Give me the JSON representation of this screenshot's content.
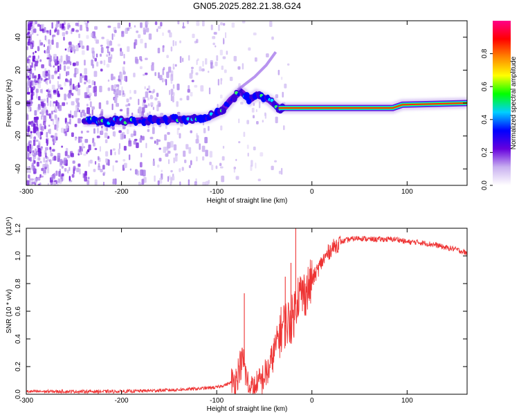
{
  "figure": {
    "title": "GN05.2025.282.21.38.G24"
  },
  "chart_data": [
    {
      "type": "heatmap",
      "xlabel": "Height of straight line (km)",
      "ylabel": "Frequency (Hz)",
      "xlim": [
        -300,
        163
      ],
      "ylim": [
        -50,
        50
      ],
      "xticks": [
        -300,
        -200,
        -100,
        0,
        100
      ],
      "yticks": [
        -40,
        -20,
        0,
        20,
        40
      ],
      "colorbar": {
        "label": "Normalized spectral amplitude",
        "range": [
          0,
          1
        ],
        "ticks": [
          0.0,
          0.2,
          0.4,
          0.6,
          0.8
        ],
        "tick_labels": [
          "0.0",
          "0.2",
          "0.4",
          "0.6",
          "0.8"
        ],
        "colormap": [
          "#ffffff",
          "#c9b0f0",
          "#6600dd",
          "#0000ff",
          "#00d0ff",
          "#00ff00",
          "#ffff00",
          "#ff8800",
          "#ff0000",
          "#ff0088"
        ]
      },
      "ridge": {
        "name": "Doppler frequency track",
        "points": [
          {
            "x": -240,
            "y": -11
          },
          {
            "x": -200,
            "y": -11
          },
          {
            "x": -150,
            "y": -10
          },
          {
            "x": -110,
            "y": -9
          },
          {
            "x": -95,
            "y": -5
          },
          {
            "x": -85,
            "y": 2
          },
          {
            "x": -75,
            "y": 7
          },
          {
            "x": -65,
            "y": 2
          },
          {
            "x": -58,
            "y": 5
          },
          {
            "x": -45,
            "y": 2
          },
          {
            "x": -35,
            "y": -3
          },
          {
            "x": -30,
            "y": -3
          },
          {
            "x": 0,
            "y": -3
          },
          {
            "x": 85,
            "y": -3
          },
          {
            "x": 95,
            "y": -1
          },
          {
            "x": 163,
            "y": 0
          }
        ]
      },
      "spur": {
        "name": "secondary track",
        "points": [
          {
            "x": -78,
            "y": 8
          },
          {
            "x": -60,
            "y": 16
          },
          {
            "x": -48,
            "y": 23
          },
          {
            "x": -38,
            "y": 31
          }
        ]
      }
    },
    {
      "type": "line",
      "xlabel": "Height of straight line (km)",
      "ylabel": "SNR (10 * v/v)",
      "yscale_label": "(x10⁴)",
      "xlim": [
        -300,
        163
      ],
      "ylim": [
        0,
        1.2
      ],
      "xticks": [
        -300,
        -200,
        -100,
        0,
        100
      ],
      "yticks": [
        0.0,
        0.2,
        0.4,
        0.6,
        0.8,
        1.0,
        1.2
      ],
      "color": "#ee3333",
      "series": [
        {
          "name": "SNR",
          "x": [
            -300,
            -250,
            -200,
            -150,
            -120,
            -100,
            -90,
            -80,
            -76,
            -72,
            -70,
            -65,
            -60,
            -55,
            -50,
            -45,
            -40,
            -35,
            -30,
            -25,
            -20,
            -17,
            -15,
            -10,
            -5,
            0,
            10,
            20,
            30,
            40,
            50,
            60,
            70,
            80,
            90,
            100,
            110,
            120,
            130,
            140,
            150,
            163
          ],
          "y": [
            0.02,
            0.02,
            0.02,
            0.03,
            0.04,
            0.05,
            0.07,
            0.1,
            0.2,
            0.25,
            0.15,
            0.02,
            0.04,
            0.08,
            0.13,
            0.18,
            0.3,
            0.42,
            0.5,
            0.52,
            0.55,
            0.65,
            0.72,
            0.72,
            0.75,
            0.82,
            0.95,
            1.05,
            1.1,
            1.12,
            1.13,
            1.12,
            1.12,
            1.12,
            1.12,
            1.1,
            1.1,
            1.09,
            1.08,
            1.06,
            1.05,
            1.02
          ]
        }
      ],
      "spikes": [
        {
          "x": -71,
          "y": 0.73
        },
        {
          "x": -17,
          "y": 1.2
        },
        {
          "x": -28,
          "y": 0.85
        },
        {
          "x": -22,
          "y": 0.95
        }
      ]
    }
  ]
}
